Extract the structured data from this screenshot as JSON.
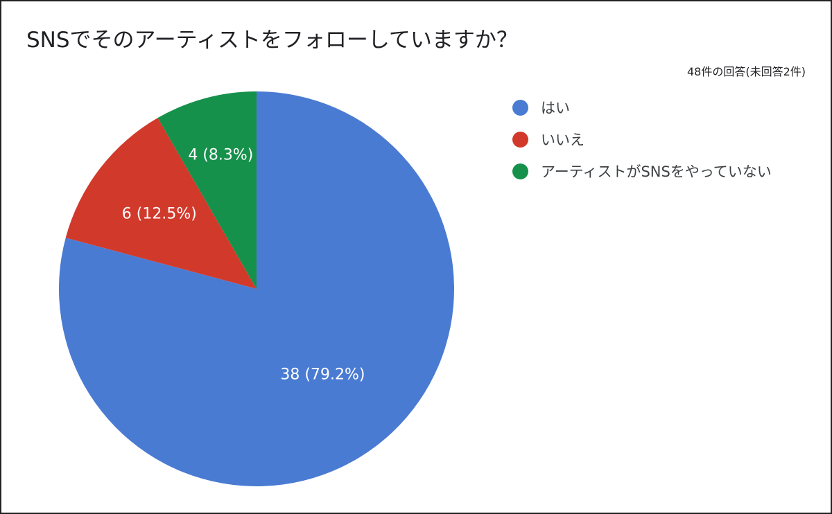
{
  "chart_data": {
    "type": "pie",
    "title": "SNSでそのアーティストをフォローしていますか？",
    "subtitle": "48件の回答(未回答2件)",
    "legend_position": "right",
    "slices": [
      {
        "label": "はい",
        "value": 38,
        "percent": 79.2,
        "display": "38 (79.2%)",
        "color": "#4a7bd2"
      },
      {
        "label": "いいえ",
        "value": 6,
        "percent": 12.5,
        "display": "6 (12.5%)",
        "color": "#d1392b"
      },
      {
        "label": "アーティストがSNSをやっていない",
        "value": 4,
        "percent": 8.3,
        "display": "4 (8.3%)",
        "color": "#16914b"
      }
    ]
  }
}
